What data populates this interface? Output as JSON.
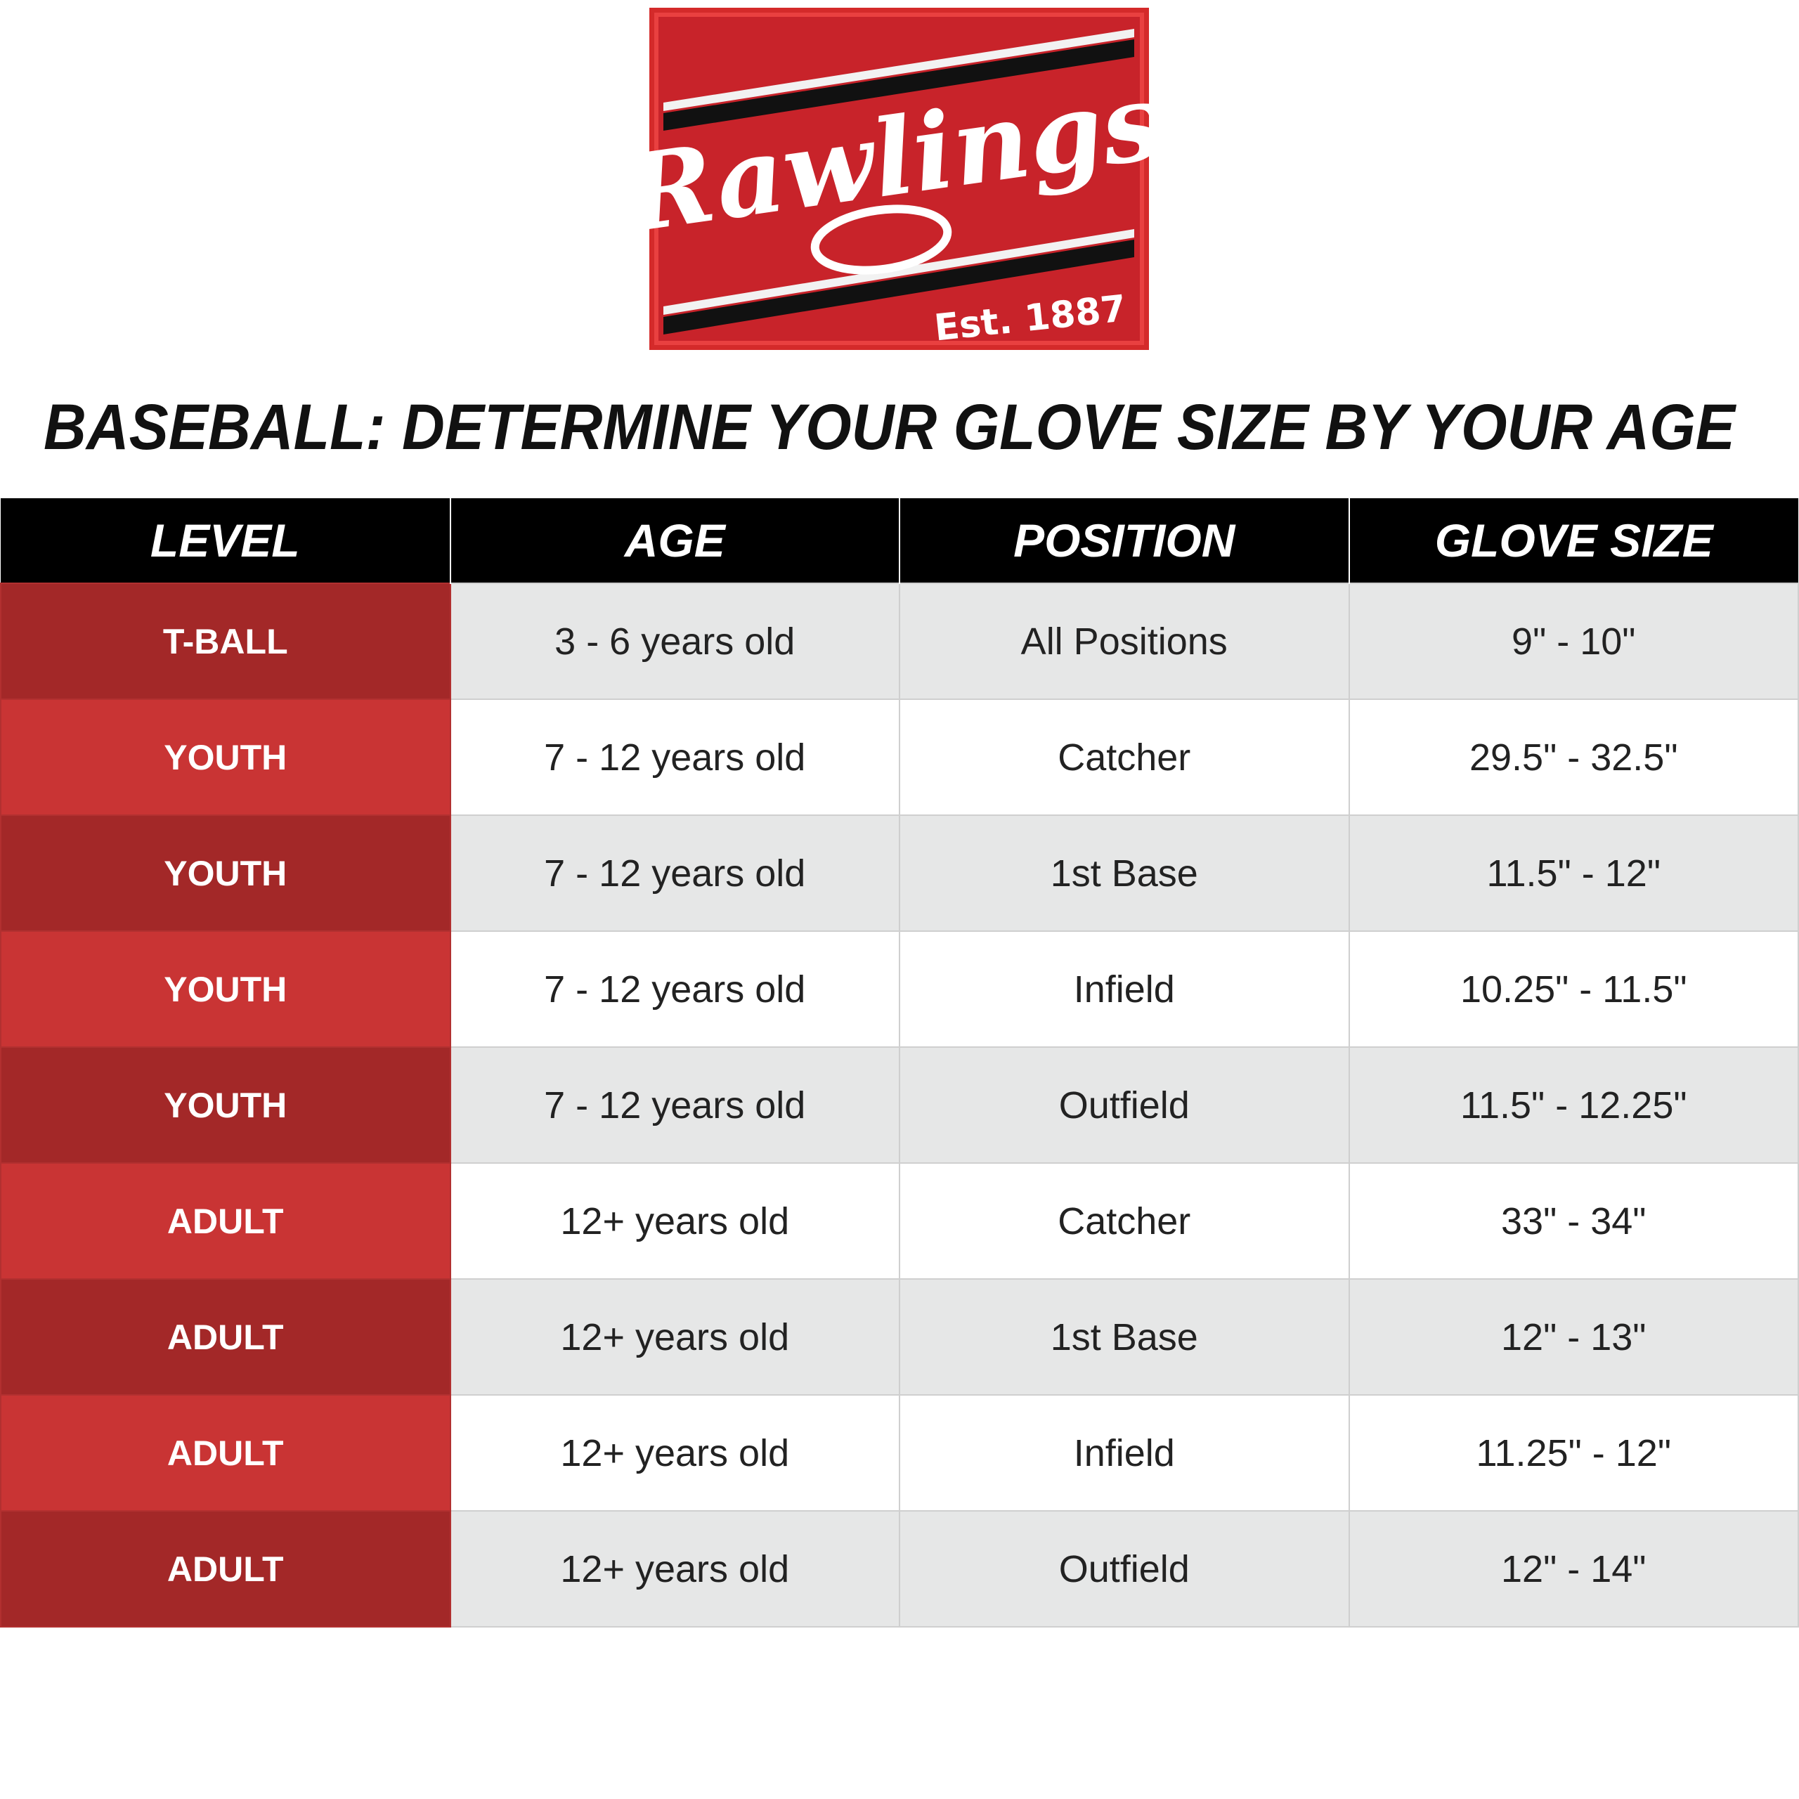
{
  "logo": {
    "name": "Rawlings",
    "established": "Est. 1887"
  },
  "title": "BASEBALL: DETERMINE YOUR GLOVE SIZE BY YOUR AGE",
  "table": {
    "columns": [
      "LEVEL",
      "AGE",
      "POSITION",
      "GLOVE SIZE"
    ],
    "rows": [
      [
        "T-BALL",
        "3 - 6 years old",
        "All Positions",
        "9\" - 10\""
      ],
      [
        "YOUTH",
        "7 - 12 years old",
        "Catcher",
        "29.5\" - 32.5\""
      ],
      [
        "YOUTH",
        "7 - 12 years old",
        "1st Base",
        "11.5\" - 12\""
      ],
      [
        "YOUTH",
        "7 - 12 years old",
        "Infield",
        "10.25\" - 11.5\""
      ],
      [
        "YOUTH",
        "7 - 12 years old",
        "Outfield",
        "11.5\" - 12.25\""
      ],
      [
        "ADULT",
        "12+ years old",
        "Catcher",
        "33\" - 34\""
      ],
      [
        "ADULT",
        "12+ years old",
        "1st Base",
        "12\" - 13\""
      ],
      [
        "ADULT",
        "12+ years old",
        "Infield",
        "11.25\" - 12\""
      ],
      [
        "ADULT",
        "12+ years old",
        "Outfield",
        "12\" - 14\""
      ]
    ]
  }
}
